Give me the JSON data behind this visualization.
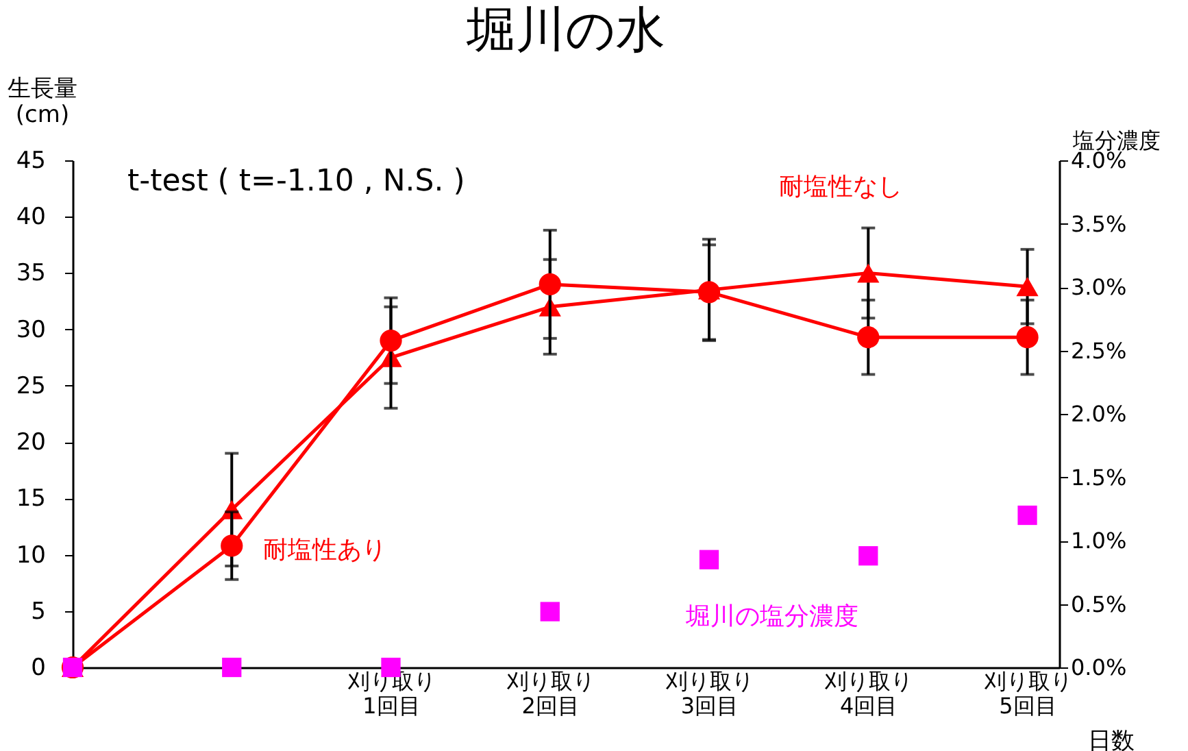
{
  "chart_data": {
    "type": "line",
    "title": "堀川の水",
    "ylabel": "生長量\n(cm)",
    "y2label": "塩分濃度",
    "xlabel": "日数",
    "annotations": [
      "t-test ( t=-1.10 , N.S. )"
    ],
    "categories": [
      null,
      null,
      "刈り取り\n1回目",
      "刈り取り\n2回目",
      "刈り取り\n3回目",
      "刈り取り\n4回目",
      "刈り取り\n5回目"
    ],
    "ylim": [
      0,
      45
    ],
    "yticks": [
      0,
      5,
      10,
      15,
      20,
      25,
      30,
      35,
      40,
      45
    ],
    "y2lim": [
      0,
      4.0
    ],
    "y2ticks": [
      {
        "value": 0,
        "label": "0.0%"
      },
      {
        "value": 0.5,
        "label": "0.5%"
      },
      {
        "value": 1.0,
        "label": "1.0%"
      },
      {
        "value": 1.5,
        "label": "1.5%"
      },
      {
        "value": 2.0,
        "label": "2.0%"
      },
      {
        "value": 2.5,
        "label": "2.5%"
      },
      {
        "value": 3.0,
        "label": "3.0%"
      },
      {
        "value": 3.5,
        "label": "3.5%"
      },
      {
        "value": 4.0,
        "label": "4.0%"
      }
    ],
    "grid": false,
    "legend": false,
    "series": [
      {
        "name": "耐塩性なし",
        "color": "#ff0000",
        "marker": "triangle",
        "values": [
          0,
          14,
          27.5,
          32,
          33.5,
          35,
          33.8
        ],
        "errors": [
          null,
          5,
          4.5,
          4.2,
          4.5,
          4,
          3.3
        ]
      },
      {
        "name": "耐塩性あり",
        "color": "#ff0000",
        "marker": "circle",
        "values": [
          0,
          10.8,
          29,
          34,
          33.3,
          29.3,
          29.3
        ],
        "errors": [
          null,
          3,
          3.8,
          4.8,
          4.2,
          3.3,
          3.3
        ]
      },
      {
        "name": "堀川の塩分濃度",
        "type": "scatter",
        "axis": "y2",
        "color": "#ff00ff",
        "marker": "square",
        "values": [
          0,
          0,
          0,
          0.44,
          0.85,
          0.88,
          1.2
        ]
      }
    ]
  }
}
